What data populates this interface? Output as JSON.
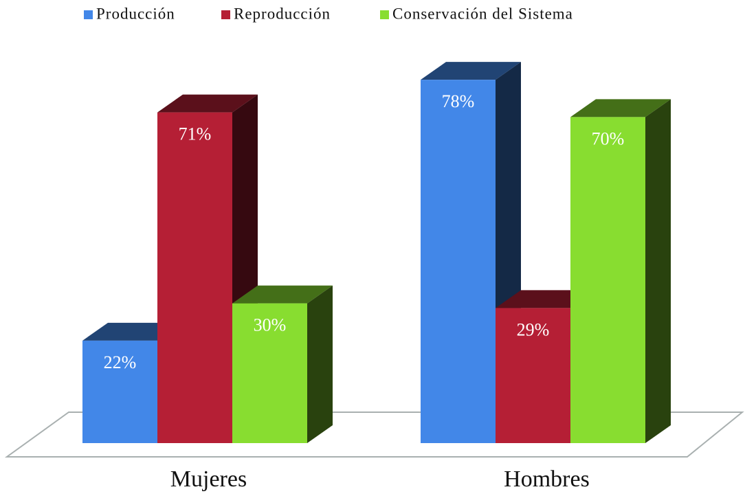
{
  "chart_data": {
    "type": "bar3d",
    "categories": [
      "Mujeres",
      "Hombres"
    ],
    "series": [
      {
        "name": "Producción",
        "color": "#4287e8",
        "values": [
          22,
          78
        ],
        "value_labels": [
          "22%",
          "78%"
        ]
      },
      {
        "name": "Reproducción",
        "color": "#b51f35",
        "values": [
          71,
          29
        ],
        "value_labels": [
          "71%",
          "29%"
        ]
      },
      {
        "name": "Conservación del Sistema",
        "color": "#88dd30",
        "values": [
          30,
          70
        ],
        "value_labels": [
          "30%",
          "70%"
        ]
      }
    ],
    "legend": "top"
  }
}
